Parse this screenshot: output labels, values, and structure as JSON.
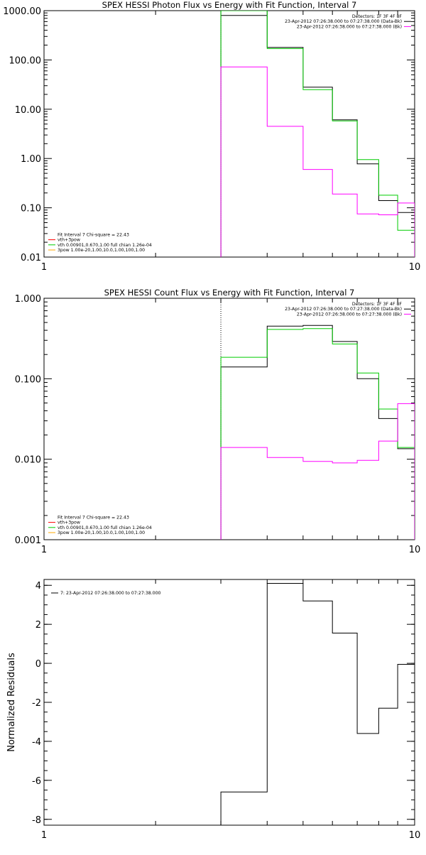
{
  "chart_data": [
    {
      "type": "line",
      "step": true,
      "title": "SPEX HESSI Photon Flux vs Energy with Fit Function, Interval 7",
      "xscale": "log",
      "yscale": "log",
      "xlim": [
        1,
        10
      ],
      "ylim": [
        0.01,
        1000
      ],
      "x_ticks": [
        {
          "value": 1,
          "label": "1"
        },
        {
          "value": 10,
          "label": "10"
        }
      ],
      "y_ticks": [
        {
          "value": 0.01,
          "label": "0.01"
        },
        {
          "value": 0.1,
          "label": "0.10"
        },
        {
          "value": 1,
          "label": "1.00"
        },
        {
          "value": 10,
          "label": "10.00"
        },
        {
          "value": 100,
          "label": "100.00"
        },
        {
          "value": 1000,
          "label": "1000.00"
        }
      ],
      "ylabel": "",
      "marker_line": {
        "x": 3
      },
      "legend_top_right": {
        "lines": [
          {
            "text": "Detectors: 1F 3F 4F 8F",
            "color": ""
          },
          {
            "text": "23-Apr-2012 07:26:38.000 to 07:27:38.000 (Data-Bk)",
            "color": "#000000"
          },
          {
            "text": "23-Apr-2012 07:26:38.000 to 07:27:38.000 (Bk)",
            "color": "#ff00ff"
          }
        ]
      },
      "legend_bottom_left": {
        "lines": [
          {
            "text": "Fit Interval 7   Chi-square = 22.43",
            "color": ""
          },
          {
            "text": "vth+3pow",
            "color": "#ff0000"
          },
          {
            "text": "vth 0.00901,0.670,1.00  full chian 1.26e-04",
            "color": "#00cc00"
          },
          {
            "text": "3pow 1.00e-20,1.00,10.0,1.00,100,1.00",
            "color": "#ffaa00"
          }
        ]
      },
      "bin_edges": [
        3,
        4,
        5,
        6,
        7,
        8,
        9,
        10
      ],
      "series": [
        {
          "name": "Data-Bk",
          "color": "#000000",
          "values": [
            800,
            180,
            28,
            6.1,
            0.78,
            0.14,
            0.08
          ]
        },
        {
          "name": "",
          "color": "#00cc00",
          "values": [
            1000,
            170,
            25,
            5.8,
            0.95,
            0.18,
            0.035
          ]
        },
        {
          "name": "Bk",
          "color": "#ff00ff",
          "values": [
            72,
            4.5,
            0.6,
            0.19,
            0.075,
            0.072,
            0.125
          ]
        }
      ]
    },
    {
      "type": "line",
      "step": true,
      "title": "SPEX HESSI Count Flux vs Energy with Fit Function, Interval 7",
      "xscale": "log",
      "yscale": "log",
      "xlim": [
        1,
        10
      ],
      "ylim": [
        0.001,
        1
      ],
      "x_ticks": [
        {
          "value": 1,
          "label": "1"
        },
        {
          "value": 10,
          "label": "10"
        }
      ],
      "y_ticks": [
        {
          "value": 0.001,
          "label": "0.001"
        },
        {
          "value": 0.01,
          "label": "0.010"
        },
        {
          "value": 0.1,
          "label": "0.100"
        },
        {
          "value": 1,
          "label": "1.000"
        }
      ],
      "ylabel": "",
      "marker_line": {
        "x": 3
      },
      "legend_top_right": {
        "lines": [
          {
            "text": "Detectors: 1F 3F 4F 8F",
            "color": ""
          },
          {
            "text": "23-Apr-2012 07:26:38.000 to 07:27:38.000 (Data-Bk)",
            "color": "#000000"
          },
          {
            "text": "23-Apr-2012 07:26:38.000 to 07:27:38.000 (Bk)",
            "color": "#ff00ff"
          }
        ]
      },
      "legend_bottom_left": {
        "lines": [
          {
            "text": "Fit Interval 7   Chi-square = 22.43",
            "color": ""
          },
          {
            "text": "vth+3pow",
            "color": "#ff0000"
          },
          {
            "text": "vth 0.00901,0.670,1.00  full chian 1.26e-04",
            "color": "#00cc00"
          },
          {
            "text": "3pow 1.00e-20,1.00,10.0,1.00,100,1.00",
            "color": "#ffaa00"
          }
        ]
      },
      "bin_edges": [
        3,
        4,
        5,
        6,
        7,
        8,
        9,
        10
      ],
      "series": [
        {
          "name": "Data-Bk",
          "color": "#000000",
          "values": [
            0.14,
            0.45,
            0.46,
            0.29,
            0.1,
            0.032,
            0.0135
          ]
        },
        {
          "name": "",
          "color": "#00cc00",
          "values": [
            0.185,
            0.41,
            0.42,
            0.27,
            0.118,
            0.042,
            0.014
          ]
        },
        {
          "name": "Bk",
          "color": "#ff00ff",
          "values": [
            0.014,
            0.0105,
            0.0094,
            0.009,
            0.0097,
            0.0168,
            0.049
          ]
        }
      ]
    },
    {
      "type": "line",
      "step": true,
      "title": "",
      "xscale": "log",
      "yscale": "linear",
      "xlim": [
        1,
        10
      ],
      "ylim": [
        -8.3,
        4.3
      ],
      "x_ticks": [
        {
          "value": 1,
          "label": "1"
        },
        {
          "value": 10,
          "label": "10"
        }
      ],
      "y_ticks": [
        {
          "value": -8,
          "label": "-8"
        },
        {
          "value": -6,
          "label": "-6"
        },
        {
          "value": -4,
          "label": "-4"
        },
        {
          "value": -2,
          "label": "-2"
        },
        {
          "value": 0,
          "label": "0"
        },
        {
          "value": 2,
          "label": "2"
        },
        {
          "value": 4,
          "label": "4"
        }
      ],
      "ylabel": "Normalized Residuals",
      "legend_top_left": {
        "lines": [
          {
            "text": "7: 23-Apr-2012 07:26:38.000 to 07:27:38.000",
            "color": "#000000"
          }
        ]
      },
      "bin_edges": [
        3,
        4,
        5,
        6,
        7,
        8,
        9,
        10
      ],
      "series": [
        {
          "name": "",
          "color": "#000000",
          "values": [
            -6.6,
            4.1,
            3.2,
            1.55,
            -3.6,
            -2.3,
            -0.05
          ]
        }
      ]
    }
  ]
}
